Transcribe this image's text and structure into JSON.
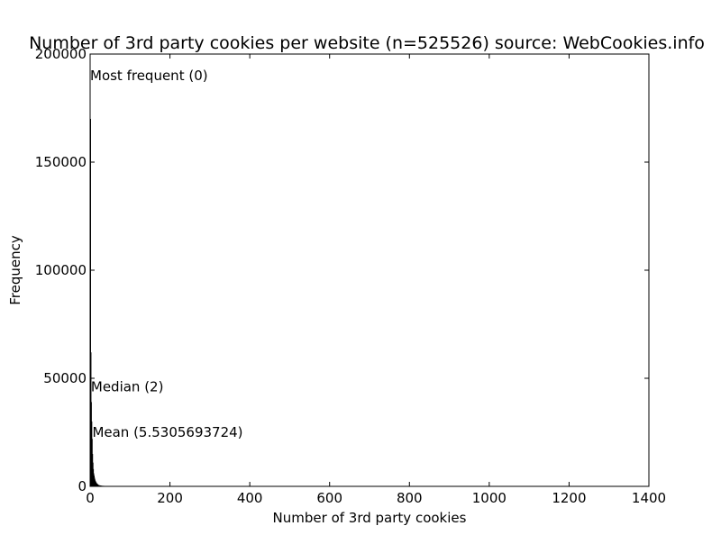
{
  "chart_data": {
    "type": "bar",
    "title": "Number of 3rd party cookies per website (n=525526) source: WebCookies.info",
    "xlabel": "Number of 3rd party cookies",
    "ylabel": "Frequency",
    "xlim": [
      0,
      1400
    ],
    "ylim": [
      0,
      200000
    ],
    "x_ticks": [
      0,
      200,
      400,
      600,
      800,
      1000,
      1200,
      1400
    ],
    "x_tick_labels": [
      "0",
      "200",
      "400",
      "600",
      "800",
      "1000",
      "1200",
      "1400"
    ],
    "y_ticks": [
      0,
      50000,
      100000,
      150000,
      200000
    ],
    "y_tick_labels": [
      "0",
      "50000",
      "100000",
      "150000",
      "200000"
    ],
    "grid": false,
    "bar_color": "#000000",
    "bins": [
      0,
      1,
      2,
      3,
      4,
      5,
      6,
      7,
      8,
      9,
      10,
      11,
      12,
      13,
      14,
      15,
      16,
      17,
      18,
      19,
      20,
      22,
      24,
      26,
      28,
      30,
      35,
      40,
      45,
      50
    ],
    "values": [
      170000,
      62000,
      39000,
      30000,
      22000,
      15000,
      11000,
      8000,
      6000,
      5000,
      4000,
      3200,
      2600,
      2200,
      1800,
      1500,
      1300,
      1100,
      950,
      800,
      650,
      550,
      450,
      380,
      320,
      250,
      180,
      120,
      80,
      50
    ],
    "annotations": [
      {
        "text": "Most frequent (0)",
        "x": 0,
        "y": 190000
      },
      {
        "text": "Median (2)",
        "x": 2,
        "y": 46000
      },
      {
        "text": "Mean (5.5305693724)",
        "x": 5.5305693724,
        "y": 25000
      }
    ]
  }
}
